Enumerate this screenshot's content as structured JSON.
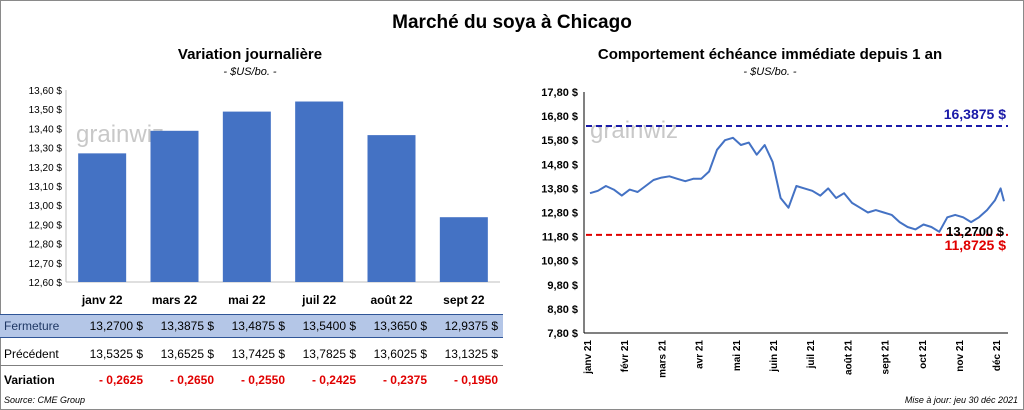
{
  "title": "Marché du soya à Chicago",
  "source": "Source: CME Group",
  "update": "Mise à jour: jeu 30 déc 2021",
  "watermark": "grainwiz",
  "colors": {
    "bar": "#4472c4",
    "line": "#4472c4",
    "high": "#1a1aa8",
    "low": "#e00000",
    "table_header_bg": "#b4c6e7",
    "negative": "#e00000"
  },
  "table": {
    "rows": [
      {
        "label": "Fermeture",
        "cells": [
          "13,2700  $",
          "13,3875  $",
          "13,4875  $",
          "13,5400  $",
          "13,3650  $",
          "12,9375  $"
        ]
      },
      {
        "label": "Précédent",
        "cells": [
          "13,5325  $",
          "13,6525  $",
          "13,7425  $",
          "13,7825  $",
          "13,6025  $",
          "13,1325  $"
        ]
      },
      {
        "label": "Variation",
        "cells": [
          "- 0,2625",
          "- 0,2650",
          "- 0,2550",
          "- 0,2425",
          "- 0,2375",
          "- 0,1950"
        ]
      }
    ]
  },
  "chart_data": [
    {
      "type": "bar",
      "title": "Variation  journalière",
      "unit": "- $US/bo. -",
      "categories": [
        "janv 22",
        "mars 22",
        "mai 22",
        "juil 22",
        "août 22",
        "sept 22"
      ],
      "values": [
        13.27,
        13.3875,
        13.4875,
        13.54,
        13.365,
        12.9375
      ],
      "ylim": [
        12.6,
        13.6
      ],
      "yticks": [
        "12,60 $",
        "12,70 $",
        "12,80 $",
        "12,90 $",
        "13,00 $",
        "13,10 $",
        "13,20 $",
        "13,30 $",
        "13,40 $",
        "13,50 $",
        "13,60 $"
      ]
    },
    {
      "type": "line",
      "title": "Comportement  échéance immédiate depuis 1 an",
      "unit": "- $US/bo. -",
      "ylim": [
        7.8,
        17.8
      ],
      "yticks": [
        "7,80 $",
        "8,80 $",
        "9,80 $",
        "10,80 $",
        "11,80 $",
        "12,80 $",
        "13,80 $",
        "14,80 $",
        "15,80 $",
        "16,80 $",
        "17,80 $"
      ],
      "xticks": [
        "janv 21",
        "févr 21",
        "mars 21",
        "avr 21",
        "mai 21",
        "juin 21",
        "juil 21",
        "août 21",
        "sept 21",
        "oct 21",
        "nov 21",
        "déc 21"
      ],
      "x": [
        "2020-12-30",
        "2021-01-06",
        "2021-01-13",
        "2021-01-20",
        "2021-01-27",
        "2021-02-03",
        "2021-02-10",
        "2021-02-17",
        "2021-02-24",
        "2021-03-03",
        "2021-03-10",
        "2021-03-17",
        "2021-03-24",
        "2021-03-31",
        "2021-04-07",
        "2021-04-14",
        "2021-04-21",
        "2021-04-28",
        "2021-05-05",
        "2021-05-12",
        "2021-05-19",
        "2021-05-26",
        "2021-06-02",
        "2021-06-09",
        "2021-06-16",
        "2021-06-23",
        "2021-06-30",
        "2021-07-07",
        "2021-07-14",
        "2021-07-21",
        "2021-07-28",
        "2021-08-04",
        "2021-08-11",
        "2021-08-18",
        "2021-08-25",
        "2021-09-01",
        "2021-09-08",
        "2021-09-15",
        "2021-09-22",
        "2021-09-29",
        "2021-10-06",
        "2021-10-13",
        "2021-10-20",
        "2021-10-27",
        "2021-11-03",
        "2021-11-10",
        "2021-11-17",
        "2021-11-24",
        "2021-12-01",
        "2021-12-08",
        "2021-12-15",
        "2021-12-22",
        "2021-12-27",
        "2021-12-30"
      ],
      "y": [
        13.6,
        13.7,
        13.9,
        13.75,
        13.5,
        13.75,
        13.65,
        13.9,
        14.15,
        14.25,
        14.3,
        14.2,
        14.1,
        14.2,
        14.2,
        14.5,
        15.4,
        15.8,
        15.9,
        15.6,
        15.7,
        15.2,
        15.6,
        14.9,
        13.4,
        13.0,
        13.9,
        13.8,
        13.7,
        13.5,
        13.8,
        13.4,
        13.6,
        13.2,
        13.0,
        12.8,
        12.9,
        12.8,
        12.7,
        12.4,
        12.2,
        12.1,
        12.3,
        12.2,
        12.0,
        12.6,
        12.7,
        12.6,
        12.4,
        12.6,
        12.9,
        13.3,
        13.8,
        13.27
      ],
      "hlines": [
        {
          "value": 16.3875,
          "label": "16,3875  $"
        },
        {
          "value": 11.8725,
          "label": "11,8725  $"
        }
      ],
      "last_label": "13,2700 $"
    }
  ]
}
